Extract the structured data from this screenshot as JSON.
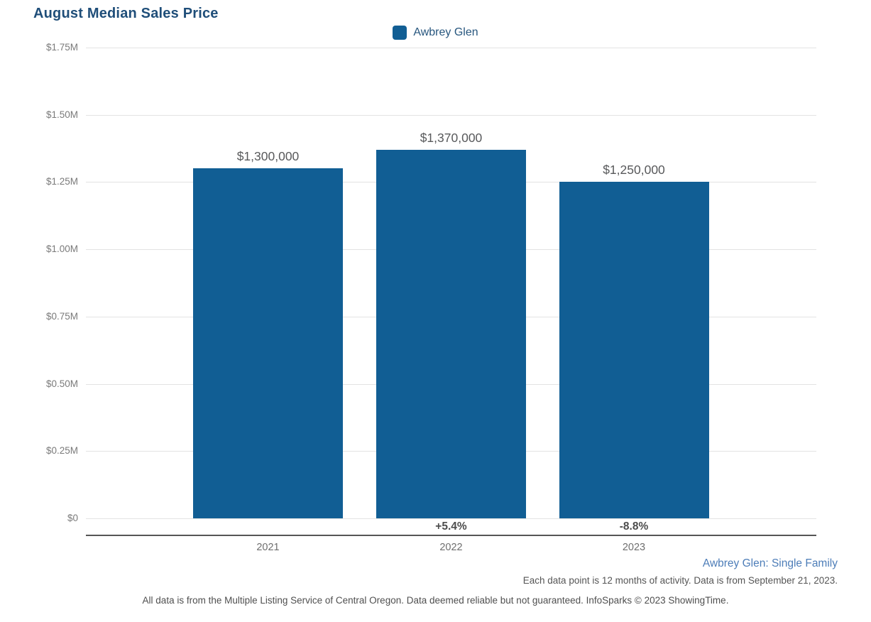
{
  "header": {
    "title": "August Median Sales Price",
    "title_color": "#1f4e79"
  },
  "legend": {
    "items": [
      {
        "label": "Awbrey Glen",
        "color": "#115e94"
      }
    ]
  },
  "chart_data": {
    "type": "bar",
    "title": "August Median Sales Price",
    "categories": [
      "2021",
      "2022",
      "2023"
    ],
    "series": [
      {
        "name": "Awbrey Glen",
        "color": "#115e94",
        "values": [
          1300000,
          1370000,
          1250000
        ]
      }
    ],
    "value_labels": [
      "$1,300,000",
      "$1,370,000",
      "$1,250,000"
    ],
    "pct_change_labels": [
      "",
      "+5.4%",
      "-8.8%"
    ],
    "ylim": [
      0,
      1750000
    ],
    "yticks": [
      {
        "label": "$1.75M",
        "value": 1750000
      },
      {
        "label": "$1.50M",
        "value": 1500000
      },
      {
        "label": "$1.25M",
        "value": 1250000
      },
      {
        "label": "$1.00M",
        "value": 1000000
      },
      {
        "label": "$0.75M",
        "value": 750000
      },
      {
        "label": "$0.50M",
        "value": 500000
      },
      {
        "label": "$0.25M",
        "value": 250000
      },
      {
        "label": "$0",
        "value": 0
      }
    ],
    "grid": true,
    "legend_position": "top-center"
  },
  "footer": {
    "series_note": "Awbrey Glen: Single Family",
    "series_note_color": "#4d7db8",
    "data_note": "Each data point is 12 months of activity. Data is from September 21, 2023.",
    "disclaimer": "All data is from the Multiple Listing Service of Central Oregon. Data deemed reliable but not guaranteed. InfoSparks © 2023 ShowingTime."
  }
}
